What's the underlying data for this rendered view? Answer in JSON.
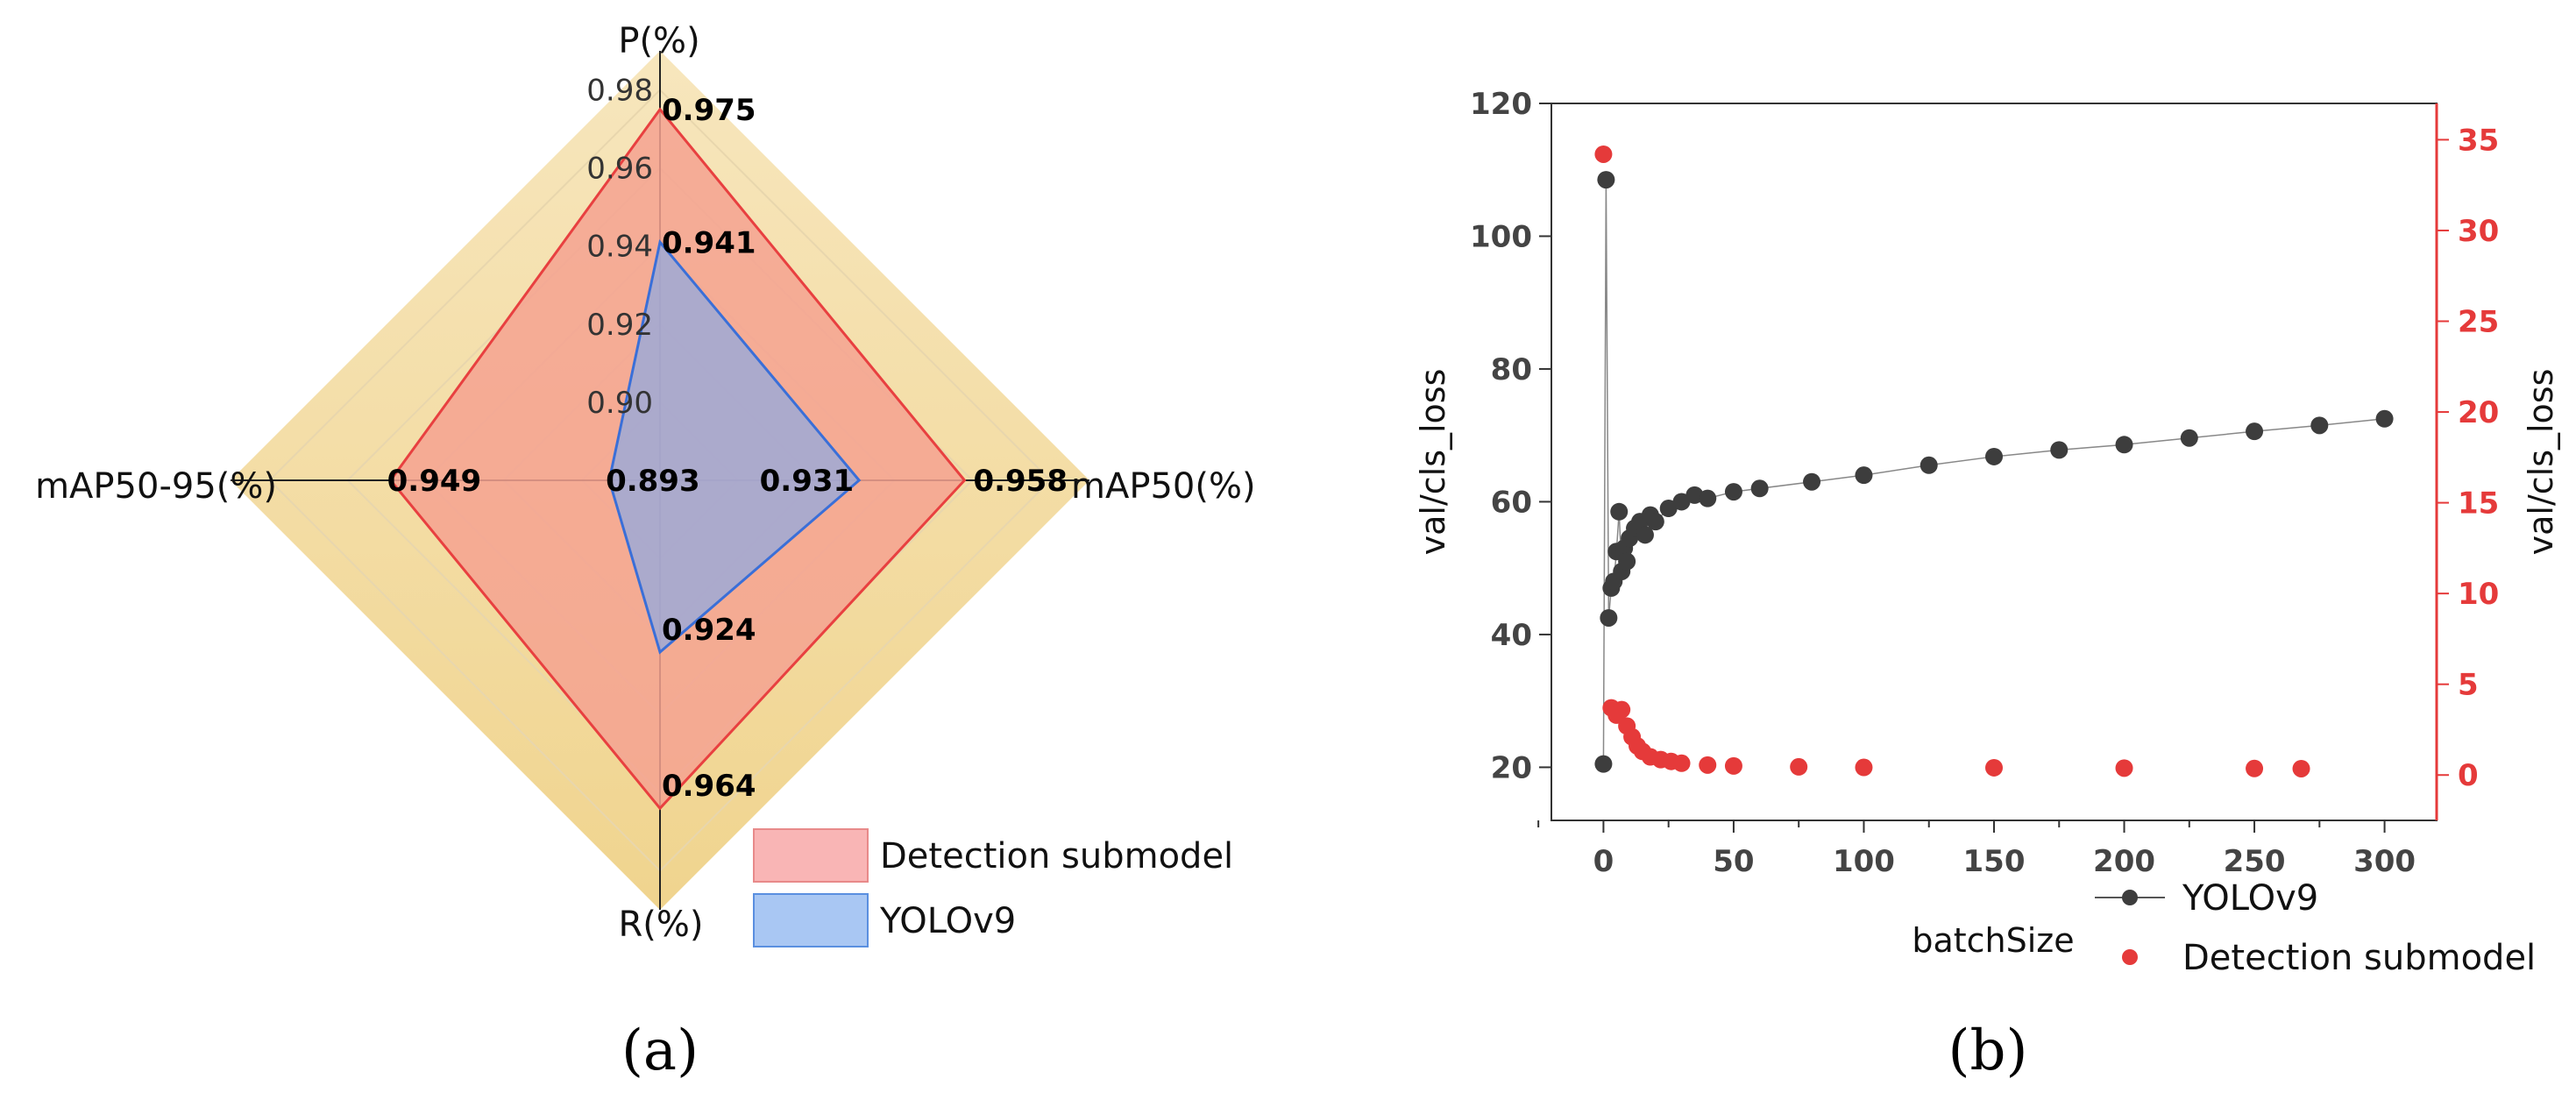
{
  "chart_data": [
    {
      "type": "radar",
      "panel_label": "(a)",
      "axes": [
        "P(%)",
        "mAP50(%)",
        "R(%)",
        "mAP50-95(%)"
      ],
      "radial_ticks": [
        "0.98",
        "0.96",
        "0.94",
        "0.92",
        "0.90"
      ],
      "radial_range": [
        0.88,
        0.99
      ],
      "series": [
        {
          "name": "Detection submodel",
          "values": [
            0.975,
            0.958,
            0.964,
            0.949
          ],
          "labels": [
            "0.975",
            "0.958",
            "0.964",
            "0.949"
          ],
          "fill": "#f4a290",
          "stroke": "#e84040"
        },
        {
          "name": "YOLOv9",
          "values": [
            0.941,
            0.931,
            0.924,
            0.893
          ],
          "labels": [
            "0.941",
            "0.931",
            "0.924",
            "0.893"
          ],
          "fill": "#9ea9d6",
          "stroke": "#3a6fd8"
        }
      ],
      "legend": [
        {
          "label": "Detection submodel",
          "color": "#f9b5b5",
          "border": "#e88a8a"
        },
        {
          "label": "YOLOv9",
          "color": "#a9c7f3",
          "border": "#5a8fe0"
        }
      ]
    },
    {
      "type": "scatter",
      "panel_label": "(b)",
      "xlabel": "batchSize",
      "ylabel_left": "val/cls_loss",
      "ylabel_right": "val/cls_loss",
      "x_ticks": [
        "0",
        "50",
        "100",
        "150",
        "200",
        "250",
        "300"
      ],
      "xlim": [
        -20,
        320
      ],
      "y_left_ticks": [
        "20",
        "40",
        "60",
        "80",
        "100",
        "120"
      ],
      "ylim_left": [
        12,
        120
      ],
      "y_right_ticks": [
        "0",
        "5",
        "10",
        "15",
        "20",
        "25",
        "30",
        "35"
      ],
      "ylim_right": [
        -2.5,
        37
      ],
      "series": [
        {
          "name": "YOLOv9",
          "axis": "left",
          "color": "#3d3d3d",
          "x": [
            0,
            1,
            2,
            3,
            4,
            5,
            6,
            7,
            8,
            9,
            10,
            12,
            14,
            16,
            18,
            20,
            25,
            30,
            35,
            40,
            50,
            60,
            80,
            100,
            125,
            150,
            175,
            200,
            225,
            250,
            275,
            300
          ],
          "y": [
            20.5,
            108.5,
            42.5,
            47,
            48,
            52.5,
            58.5,
            49.5,
            53,
            51,
            54.5,
            56,
            57,
            55,
            58,
            57,
            59,
            60,
            61,
            60.5,
            61.5,
            62,
            63,
            64,
            65.5,
            66.8,
            67.8,
            68.6,
            69.6,
            70.6,
            71.5,
            72.5
          ]
        },
        {
          "name": "Detection submodel",
          "axis": "right",
          "color": "#e53a3a",
          "x": [
            0,
            3,
            5,
            7,
            9,
            11,
            13,
            15,
            18,
            22,
            26,
            30,
            40,
            50,
            75,
            100,
            150,
            200,
            250,
            268
          ],
          "y": [
            34.2,
            3.7,
            3.3,
            3.6,
            2.7,
            2.1,
            1.6,
            1.3,
            1.0,
            0.85,
            0.75,
            0.65,
            0.55,
            0.5,
            0.45,
            0.42,
            0.4,
            0.38,
            0.36,
            0.35
          ]
        }
      ],
      "legend": [
        {
          "label": "YOLOv9",
          "color": "#3d3d3d"
        },
        {
          "label": "Detection submodel",
          "color": "#e53a3a"
        }
      ]
    }
  ]
}
